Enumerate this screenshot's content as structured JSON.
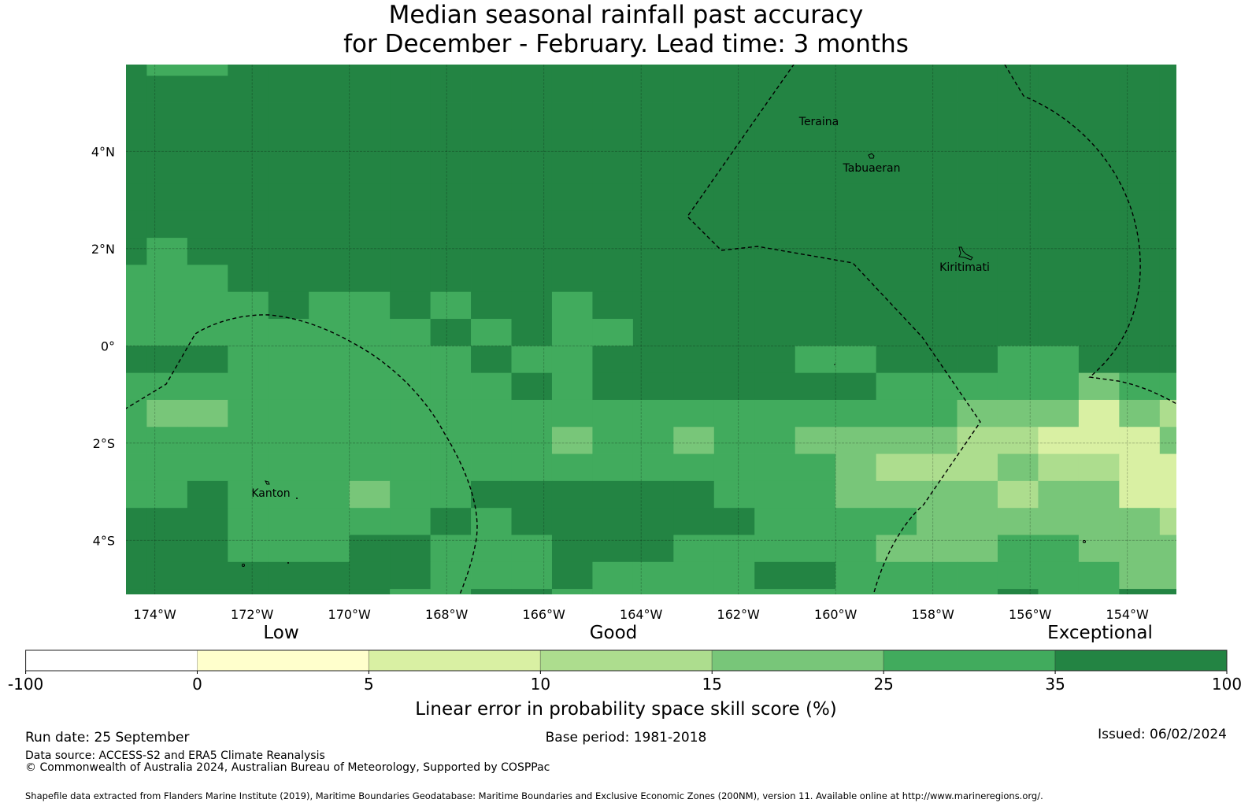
{
  "title": {
    "line1": "Median seasonal rainfall past accuracy",
    "line2": "for December - February. Lead time: 3 months"
  },
  "chart_data": {
    "type": "heatmap",
    "title": "Median seasonal rainfall past accuracy for December - February. Lead time: 3 months",
    "extent": {
      "lon": [
        -174.6,
        -153.0
      ],
      "lat": [
        -5.1,
        5.8
      ]
    },
    "lon_ticks": [
      -174,
      -172,
      -170,
      -168,
      -166,
      -164,
      -162,
      -160,
      -158,
      -156,
      -154
    ],
    "lon_tick_labels": [
      "174°W",
      "172°W",
      "170°W",
      "168°W",
      "166°W",
      "164°W",
      "162°W",
      "160°W",
      "158°W",
      "156°W",
      "154°W"
    ],
    "lat_ticks": [
      4,
      2,
      0,
      -2,
      -4
    ],
    "lat_tick_labels": [
      "4°N",
      "2°N",
      "0°",
      "2°S",
      "4°S"
    ],
    "grid_lines": true,
    "cell_grid": {
      "origin_lon": -175.0,
      "origin_lat": 6.1111,
      "dlon": 0.8333,
      "dlat": 0.5556,
      "note_levels": "digit = colorbar bin index (0 = -100..0, 6 = 35..100)",
      "rows": [
        "655666666666666666666666666",
        "666666666666666666666666666",
        "666666666666666666666666666",
        "666666666666666666666666666",
        "666666666666666666666666666",
        "666666666666666666666666666",
        "666666666666666666666666666",
        "656666666666666666666666666",
        "555666666666666666666666666",
        "555565565665666666666666666",
        "555555556565566666666666666",
        "666555555655666665566655666",
        "555555555565666666655555455",
        "544555555555555555555444243",
        "555555555554554554444332224",
        "555555555555555555433343322",
        "556555455666666555444434422",
        "666555556566666655554444443",
        "666555665556665555544455444",
        "666666665556555566555555544",
        "666666655665555555555565566"
      ]
    },
    "colorbar": {
      "boundaries": [
        -100,
        0,
        5,
        10,
        15,
        25,
        35,
        100
      ],
      "tick_labels": [
        "-100",
        "0",
        "5",
        "10",
        "15",
        "25",
        "35",
        "100"
      ],
      "colors": [
        "#ffffff",
        "#ffffcc",
        "#d9f0a3",
        "#addd8e",
        "#78c679",
        "#41ab5d",
        "#238443"
      ],
      "category_labels": [
        "Low",
        "Good",
        "Exceptional"
      ],
      "label": "Linear error in probability space skill score (%)"
    },
    "places": [
      {
        "name": "Teraina",
        "lon": -160.4,
        "lat": 4.68
      },
      {
        "name": "Tabuaeran",
        "lon": -159.35,
        "lat": 3.72
      },
      {
        "name": "Kiritimati",
        "lon": -157.4,
        "lat": 1.7
      },
      {
        "name": "Kanton",
        "lon": -171.7,
        "lat": -2.85
      }
    ]
  },
  "footer": {
    "run_date": "Run date: 25 September",
    "base_period": "Base period: 1981-2018",
    "issued": "Issued: 06/02/2024",
    "data_source": "Data source: ACCESS-S2 and ERA5 Climate Reanalysis",
    "copyright": "© Commonwealth of Australia 2024, Australian Bureau of Meteorology, Supported by COSPPac",
    "shapefile": "Shapefile data extracted from Flanders Marine Institute (2019), Maritime Boundaries Geodatabase: Maritime Boundaries and Exclusive Economic Zones (200NM), version 11. Available online at http://www.marineregions.org/."
  }
}
